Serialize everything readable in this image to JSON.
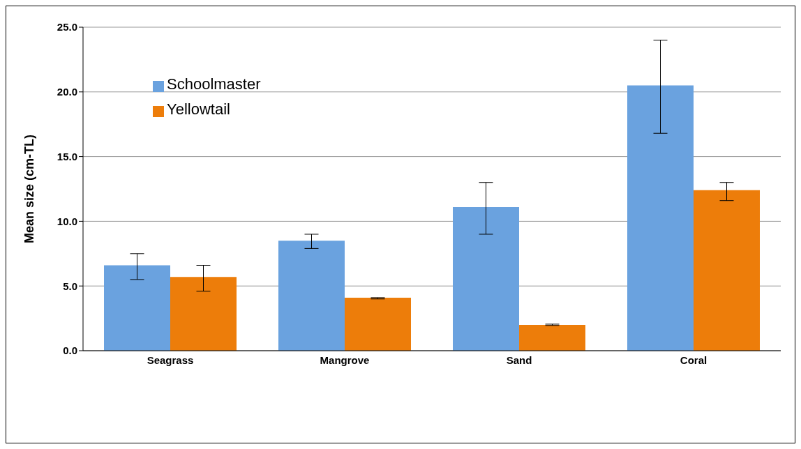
{
  "chart_data": {
    "type": "bar",
    "ylabel": "Mean size (cm-TL)",
    "categories": [
      "Seagrass",
      "Mangrove",
      "Sand",
      "Coral"
    ],
    "series": [
      {
        "name": "Schoolmaster",
        "color": "#6aa2df",
        "values": [
          6.6,
          8.5,
          11.1,
          20.5
        ],
        "errors": [
          [
            5.5,
            7.5
          ],
          [
            7.9,
            9.0
          ],
          [
            9.0,
            13.0
          ],
          [
            16.8,
            24.0
          ]
        ]
      },
      {
        "name": "Yellowtail",
        "color": "#ed7d0a",
        "values": [
          5.7,
          4.1,
          2.0,
          12.4
        ],
        "errors": [
          [
            4.6,
            6.6
          ],
          [
            4.0,
            4.1
          ],
          [
            1.95,
            2.05
          ],
          [
            11.6,
            13.0
          ]
        ]
      }
    ],
    "ylim": [
      0,
      25
    ],
    "yticks": [
      {
        "value": 0,
        "label": "0.0"
      },
      {
        "value": 5,
        "label": "5.0"
      },
      {
        "value": 10,
        "label": "10.0"
      },
      {
        "value": 15,
        "label": "15.0"
      },
      {
        "value": 20,
        "label": "20.0"
      },
      {
        "value": 25,
        "label": "25.0"
      }
    ],
    "grid": "y",
    "legend": "top left"
  }
}
